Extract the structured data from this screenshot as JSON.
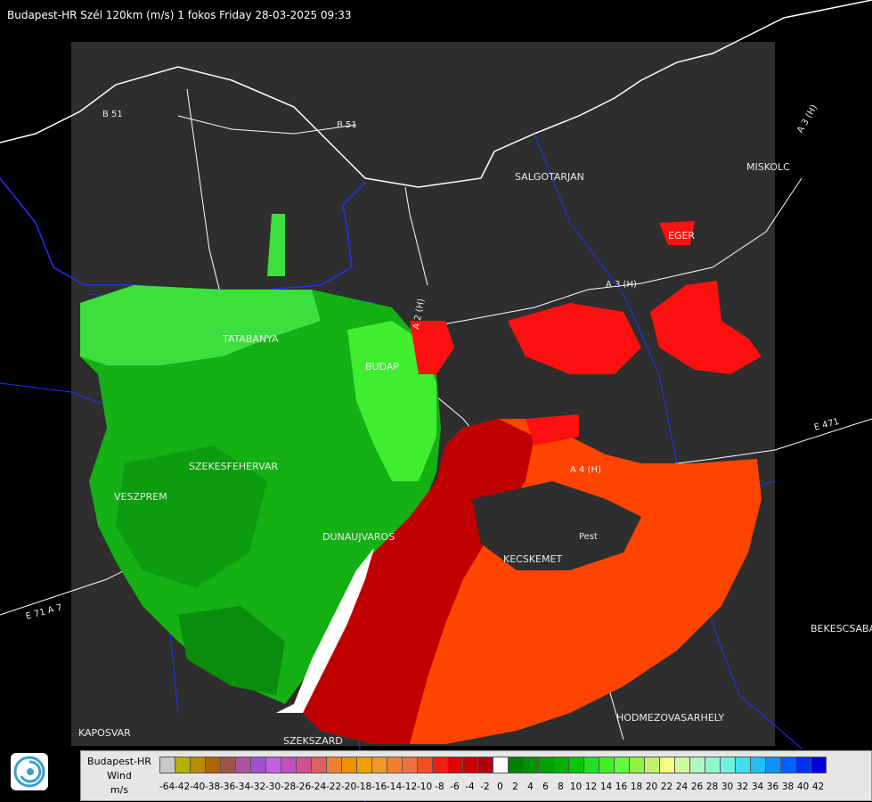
{
  "title": "Budapest-HR Szél 120km (m/s) 1 fokos Friday 28-03-2025 09:33",
  "cities": [
    "SALGOTARJAN",
    "MISKOLC",
    "EGER",
    "TATABANYA",
    "BUDAP",
    "SZEKESFEHERVAR",
    "VESZPREM",
    "DUNAUJVAROS",
    "KECSKEMET",
    "HODMEZOVASARHELY",
    "BEKESCSABA",
    "KAPOSVAR",
    "SZEKSZARD"
  ],
  "roads": [
    "B 51",
    "B 51",
    "A 3 (H)",
    "A 3 (H)",
    "A 2 (H)",
    "A 4 (H)",
    "E 471",
    "E 71 A 7",
    "Pest"
  ],
  "legend": {
    "station": "Budapest-HR",
    "quantity": "Wind",
    "unit": "m/s",
    "ticks": [
      "-64",
      "-42",
      "-40",
      "-38",
      "-36",
      "-34",
      "-32",
      "-30",
      "-28",
      "-26",
      "-24",
      "-22",
      "-20",
      "-18",
      "-16",
      "-14",
      "-12",
      "-10",
      "-8",
      "-6",
      "-4",
      "-2",
      "0",
      "2",
      "4",
      "6",
      "8",
      "10",
      "12",
      "14",
      "16",
      "18",
      "20",
      "22",
      "24",
      "26",
      "28",
      "30",
      "32",
      "34",
      "36",
      "38",
      "40",
      "42"
    ],
    "colors": [
      "#c8c8c8",
      "#b4b000",
      "#b88c00",
      "#b06400",
      "#a0524a",
      "#b050a0",
      "#a050d0",
      "#c060e0",
      "#c050c0",
      "#d05090",
      "#e06060",
      "#f08030",
      "#f09000",
      "#f0a000",
      "#f09820",
      "#f08030",
      "#f07040",
      "#f05020",
      "#f02010",
      "#e00000",
      "#c80000",
      "#b00010",
      "#ffffff",
      "#008000",
      "#009000",
      "#00a000",
      "#00b000",
      "#00c800",
      "#20e020",
      "#40f020",
      "#60ff40",
      "#90f040",
      "#c0f070",
      "#f0ff80",
      "#d0f8a0",
      "#b0f8c0",
      "#90f8d0",
      "#70f0e0",
      "#40e0f0",
      "#20c0f8",
      "#1090ff",
      "#0060ff",
      "#0030f0",
      "#0000e0"
    ]
  }
}
